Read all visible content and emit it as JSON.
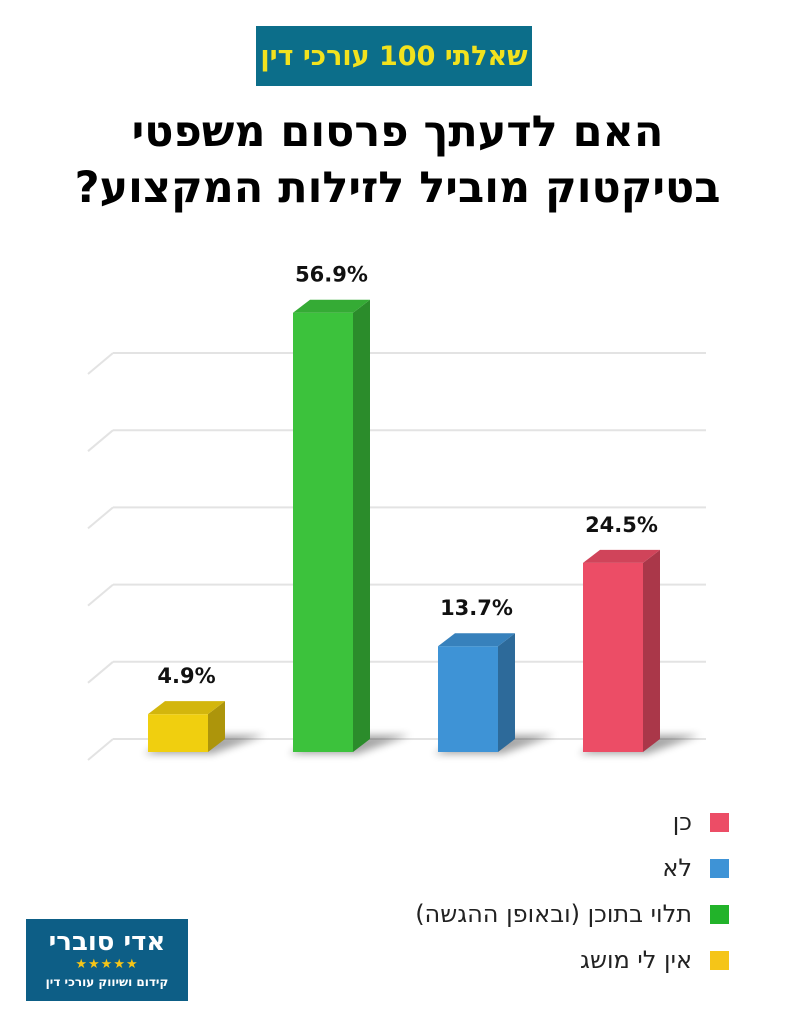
{
  "badge": {
    "text": "שאלתי 100 עורכי דין"
  },
  "title": {
    "line1": "האם לדעתך פרסום משפטי",
    "line2": "בטיקטוק מוביל לזילות המקצוע?"
  },
  "chart_data": {
    "type": "bar",
    "categories": [
      "אין לי מושג",
      "תלוי בתוכן (ובאופן ההגשה)",
      "לא",
      "כן"
    ],
    "values": [
      4.9,
      56.9,
      13.7,
      24.5
    ],
    "data_labels": [
      "4.9%",
      "56.9%",
      "13.7%",
      "24.5%"
    ],
    "unit": "%",
    "colors": [
      "#f0cf0f",
      "#3cc23c",
      "#3e93d6",
      "#ec4d66"
    ],
    "grid": true,
    "legend_position": "bottom-right",
    "ylim": [
      0,
      60
    ]
  },
  "legend": {
    "items": [
      {
        "label": "כן",
        "color": "#ec4d66"
      },
      {
        "label": "לא",
        "color": "#3e93d6"
      },
      {
        "label": "תלוי בתוכן (ובאופן ההגשה)",
        "color": "#22b32a"
      },
      {
        "label": "אין לי מושג",
        "color": "#f5c518"
      }
    ]
  },
  "logo": {
    "name": "אדי סוברי",
    "stars": "★★★★★",
    "tagline": "קידום ושיווק עורכי דין"
  }
}
